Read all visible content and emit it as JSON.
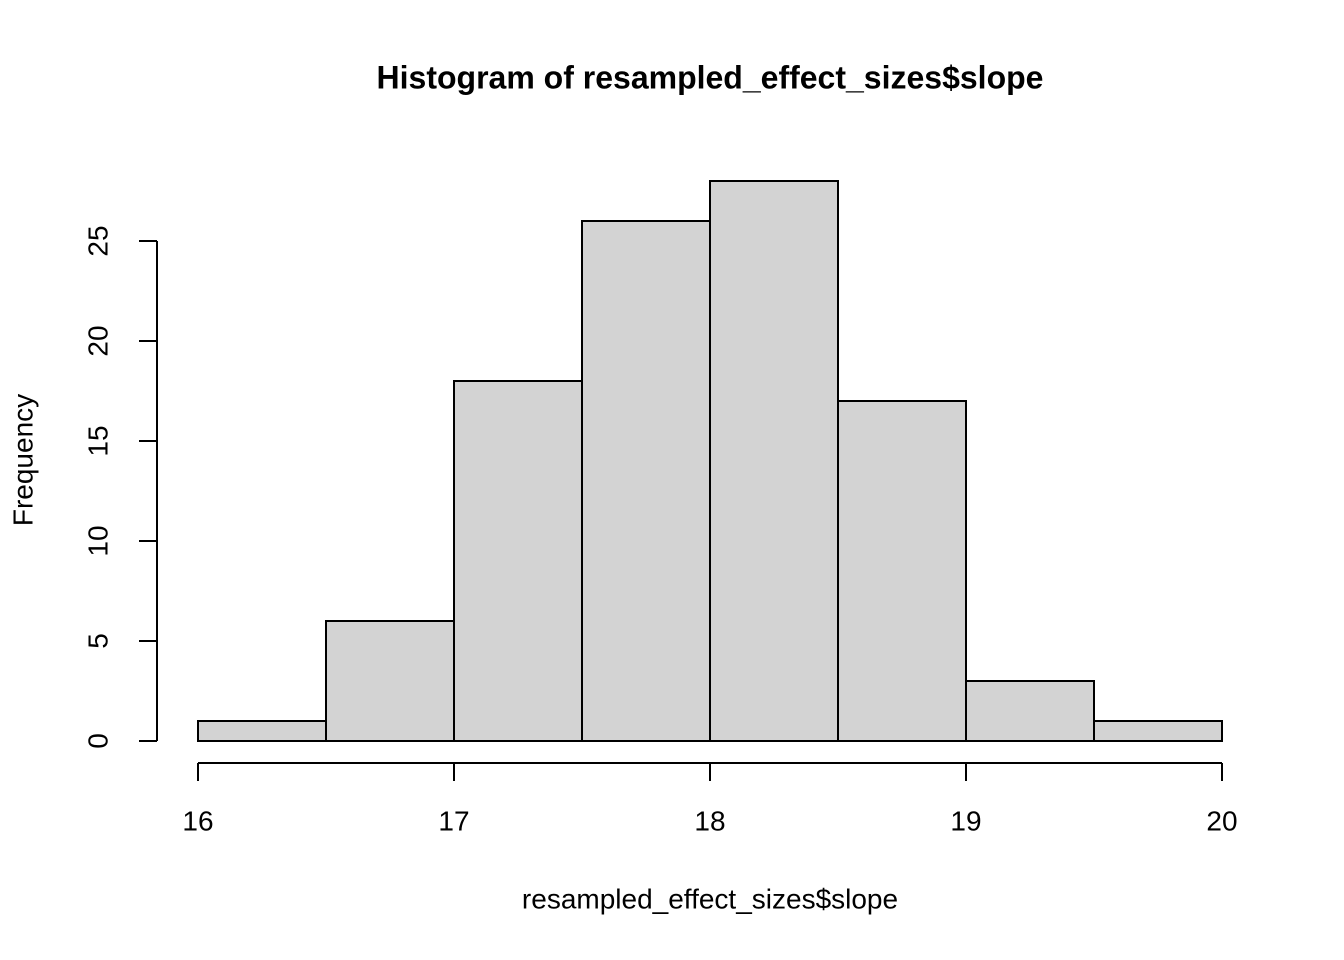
{
  "chart_data": {
    "type": "histogram",
    "title": "Histogram of resampled_effect_sizes$slope",
    "x_label": "resampled_effect_sizes$slope",
    "y_label": "Frequency",
    "bins": [
      16,
      16.5,
      17,
      17.5,
      18,
      18.5,
      19,
      19.5,
      20
    ],
    "values": [
      1,
      6,
      18,
      26,
      28,
      17,
      3,
      1
    ],
    "color": "#d3d3d3",
    "xlim": [
      16,
      20
    ],
    "xticks": [
      16,
      17,
      18,
      19,
      20
    ],
    "ylim": [
      0,
      28
    ],
    "yticks": [
      0,
      5,
      10,
      15,
      20,
      25
    ]
  }
}
